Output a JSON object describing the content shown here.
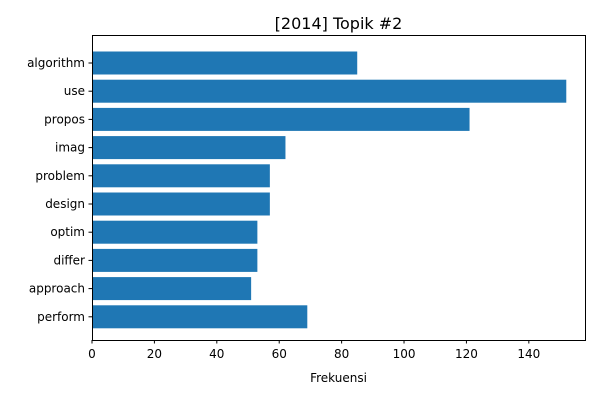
{
  "chart_data": {
    "type": "bar",
    "orientation": "horizontal",
    "title": "[2014] Topik #2",
    "xlabel": "Frekuensi",
    "ylabel": "",
    "categories": [
      "algorithm",
      "use",
      "propos",
      "imag",
      "problem",
      "design",
      "optim",
      "differ",
      "approach",
      "perform"
    ],
    "values": [
      85,
      152,
      121,
      62,
      57,
      57,
      53,
      53,
      51,
      69
    ],
    "xlim": [
      0,
      158
    ],
    "xticks": [
      0,
      20,
      40,
      60,
      80,
      100,
      120,
      140
    ],
    "grid": false,
    "legend": "none",
    "bar_color": "#1f77b4"
  }
}
